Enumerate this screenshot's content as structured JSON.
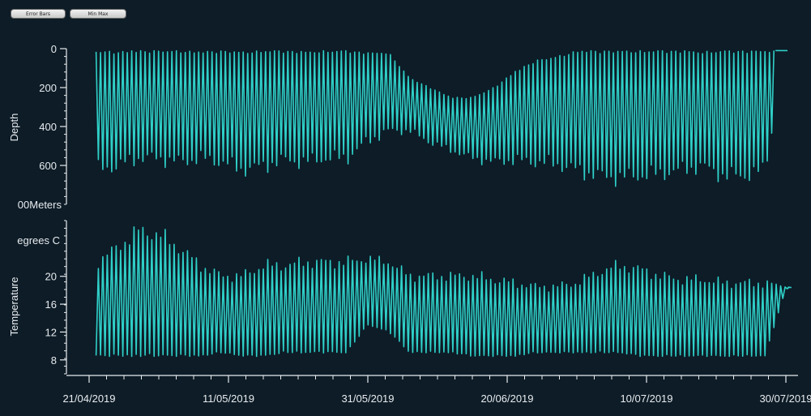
{
  "toolbar": {
    "error_bars_label": "Error Bars",
    "min_max_label": "Min Max"
  },
  "colors": {
    "background": "#0d1c27",
    "series": "#2fd0c8",
    "axis": "#e8ecef"
  },
  "chart_data": [
    {
      "type": "line",
      "ylabel": "Depth",
      "yunit": "Meters",
      "yaxis_inverted": true,
      "ylim": [
        0,
        800
      ],
      "yticks": [
        {
          "value": 0,
          "label": "0"
        },
        {
          "value": 200,
          "label": "200"
        },
        {
          "value": 400,
          "label": "400"
        },
        {
          "value": 600,
          "label": "600"
        }
      ],
      "yunit_label": "00Meters",
      "series": [
        {
          "x": [
            "2019-04-22",
            "2019-04-25",
            "2019-04-28",
            "2019-05-01",
            "2019-05-04",
            "2019-05-07",
            "2019-05-10",
            "2019-05-13",
            "2019-05-16",
            "2019-05-19",
            "2019-05-22",
            "2019-05-25",
            "2019-05-28",
            "2019-05-31",
            "2019-06-03",
            "2019-06-06",
            "2019-06-09",
            "2019-06-12",
            "2019-06-15",
            "2019-06-18",
            "2019-06-21",
            "2019-06-24",
            "2019-06-27",
            "2019-06-30",
            "2019-07-03",
            "2019-07-06",
            "2019-07-09",
            "2019-07-12",
            "2019-07-15",
            "2019-07-18",
            "2019-07-21",
            "2019-07-24",
            "2019-07-27",
            "2019-07-30"
          ],
          "ymin": [
            10,
            15,
            10,
            10,
            10,
            15,
            10,
            15,
            10,
            10,
            15,
            10,
            10,
            20,
            20,
            150,
            200,
            250,
            250,
            200,
            120,
            60,
            40,
            10,
            10,
            10,
            10,
            10,
            10,
            15,
            10,
            10,
            10,
            10
          ],
          "ymax": [
            620,
            600,
            560,
            560,
            580,
            560,
            580,
            620,
            600,
            570,
            580,
            560,
            560,
            470,
            420,
            420,
            480,
            520,
            560,
            580,
            570,
            580,
            590,
            620,
            650,
            660,
            650,
            640,
            620,
            600,
            650,
            650,
            620,
            10
          ]
        }
      ]
    },
    {
      "type": "line",
      "ylabel": "Temperature",
      "yunit": "Degrees C",
      "ylim": [
        6,
        28
      ],
      "yticks": [
        {
          "value": 8,
          "label": "8"
        },
        {
          "value": 12,
          "label": "12"
        },
        {
          "value": 16,
          "label": "16"
        },
        {
          "value": 20,
          "label": "20"
        }
      ],
      "yunit_label": "egrees C",
      "series": [
        {
          "x": [
            "2019-04-22",
            "2019-04-25",
            "2019-04-28",
            "2019-05-01",
            "2019-05-04",
            "2019-05-07",
            "2019-05-10",
            "2019-05-13",
            "2019-05-16",
            "2019-05-19",
            "2019-05-22",
            "2019-05-25",
            "2019-05-28",
            "2019-05-31",
            "2019-06-03",
            "2019-06-06",
            "2019-06-09",
            "2019-06-12",
            "2019-06-15",
            "2019-06-18",
            "2019-06-21",
            "2019-06-24",
            "2019-06-27",
            "2019-06-30",
            "2019-07-03",
            "2019-07-06",
            "2019-07-09",
            "2019-07-12",
            "2019-07-15",
            "2019-07-18",
            "2019-07-21",
            "2019-07-24",
            "2019-07-27",
            "2019-07-30"
          ],
          "ymin": [
            8.5,
            8.5,
            8.5,
            8.5,
            8.5,
            8.5,
            9,
            8.5,
            8.5,
            9,
            9,
            9,
            9,
            13,
            12,
            9,
            9,
            9,
            8.5,
            8.5,
            8.5,
            9,
            9,
            9,
            9,
            9,
            8.5,
            8.5,
            8.5,
            8.5,
            8.5,
            8.5,
            8.5,
            18.2
          ],
          "ymax": [
            22,
            24,
            26.5,
            26,
            24,
            21.5,
            20,
            20,
            21.5,
            21.5,
            22,
            22,
            22,
            22.5,
            22,
            20,
            20,
            20,
            20,
            19.5,
            19,
            18.5,
            18.5,
            19,
            20.5,
            21.5,
            21,
            20,
            19.5,
            19.5,
            19,
            19,
            19,
            18.5
          ]
        }
      ]
    },
    {
      "type": "axis",
      "xlabel": "",
      "xlim": [
        "2019-04-21",
        "2019-07-30"
      ],
      "xticks": [
        "21/04/2019",
        "11/05/2019",
        "31/05/2019",
        "20/06/2019",
        "10/07/2019",
        "30/07/2019"
      ]
    }
  ]
}
